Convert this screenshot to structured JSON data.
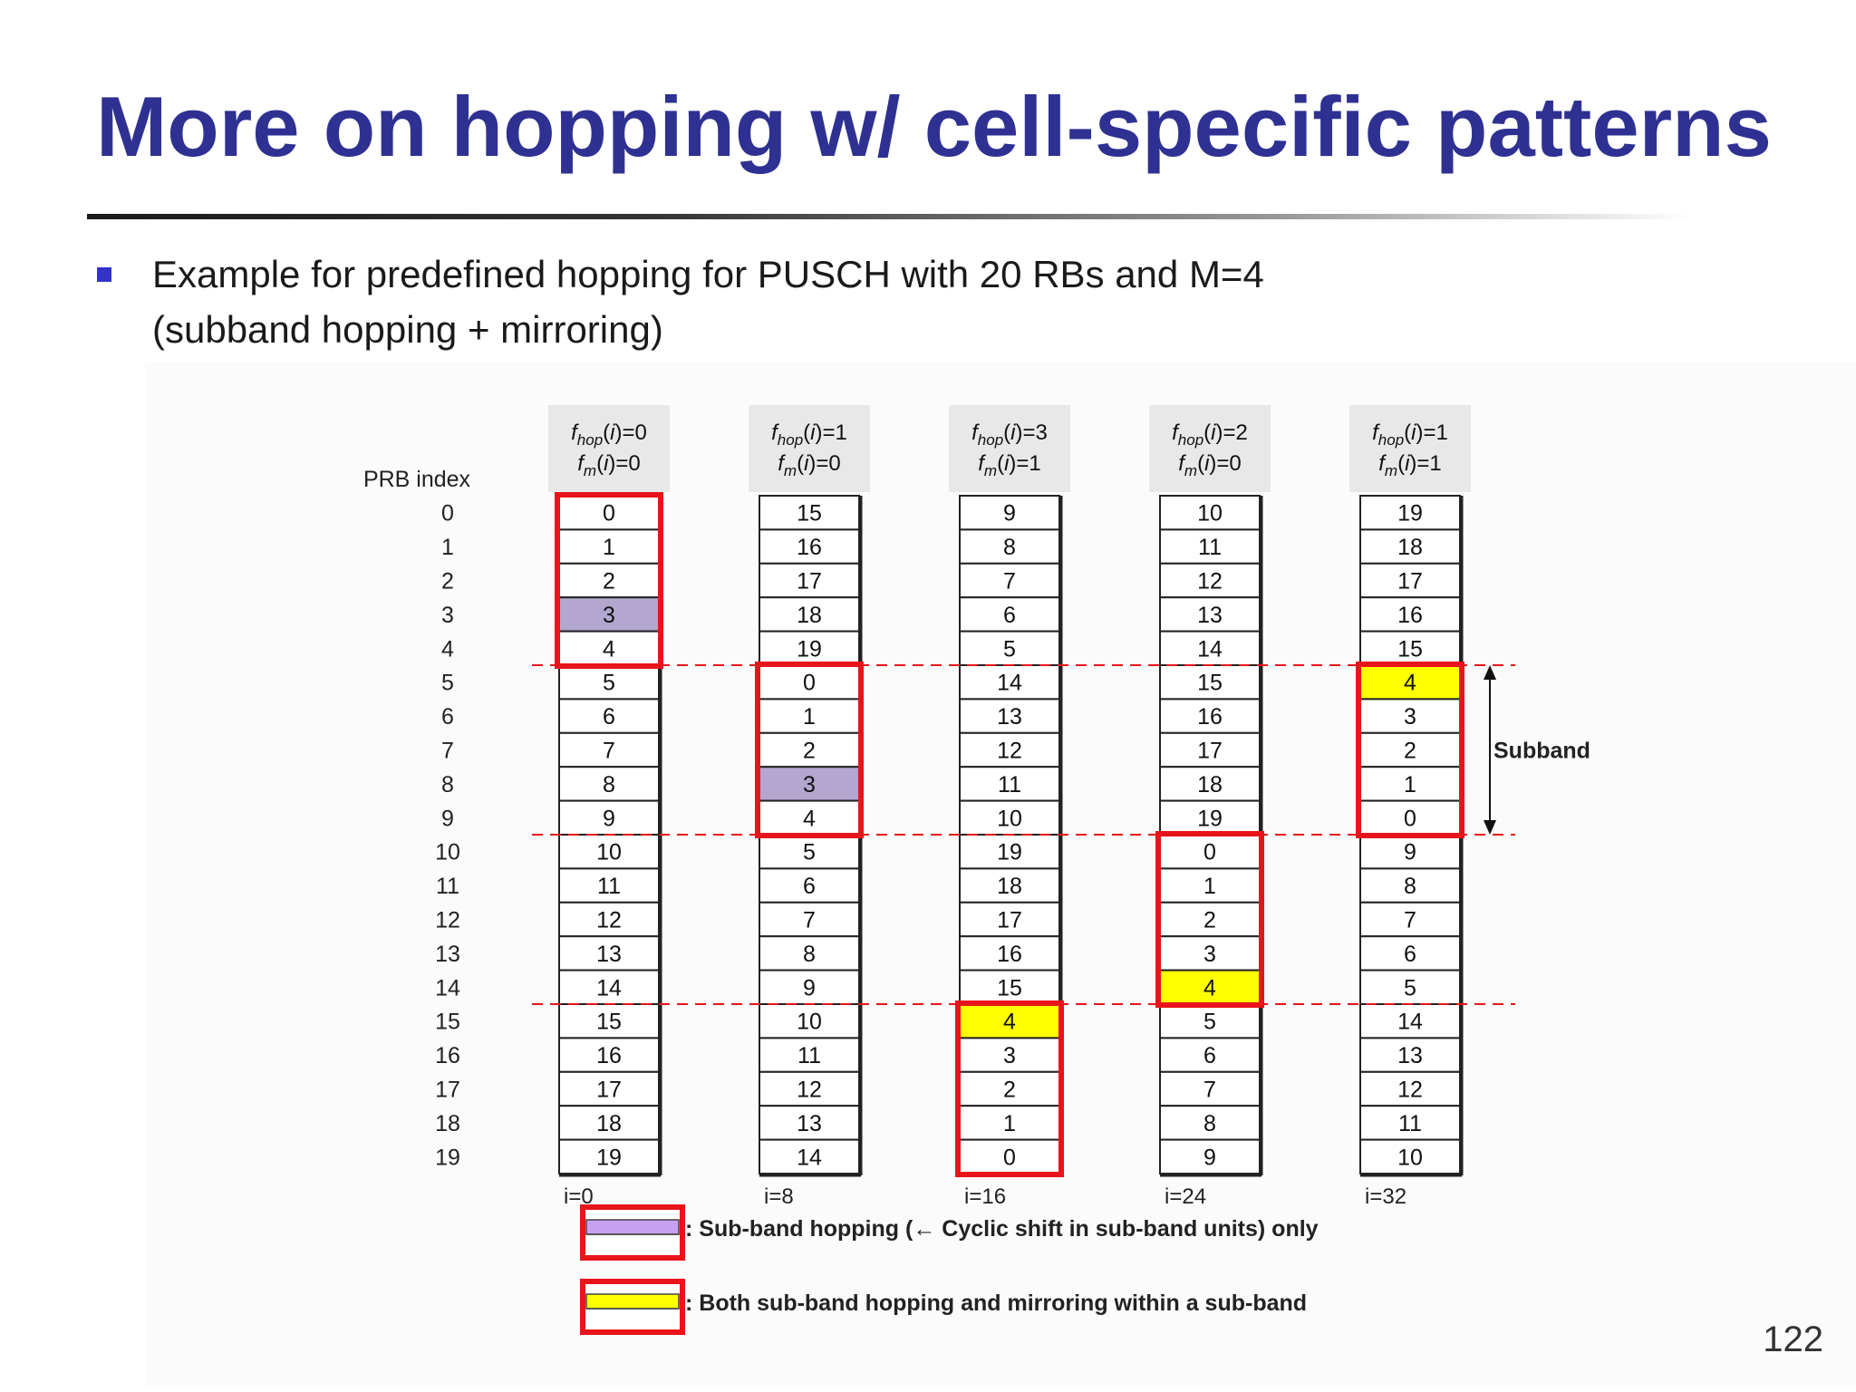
{
  "slide": {
    "title": "More on hopping w/ cell-specific patterns",
    "bullet_line1": "Example for predefined hopping for PUSCH with 20 RBs and M=4",
    "bullet_line2": "(subband hopping + mirroring)",
    "page_number": "122"
  },
  "figure": {
    "prb_label": "PRB index",
    "prb_indices": [
      0,
      1,
      2,
      3,
      4,
      5,
      6,
      7,
      8,
      9,
      10,
      11,
      12,
      13,
      14,
      15,
      16,
      17,
      18,
      19
    ],
    "subband_label": "Subband",
    "columns": [
      {
        "fhop": "0",
        "fm": "0",
        "i_label": "i=0",
        "values": [
          0,
          1,
          2,
          3,
          4,
          5,
          6,
          7,
          8,
          9,
          10,
          11,
          12,
          13,
          14,
          15,
          16,
          17,
          18,
          19
        ],
        "boxed_subband": 0,
        "highlight_row": 3,
        "highlight_type": "purple"
      },
      {
        "fhop": "1",
        "fm": "0",
        "i_label": "i=8",
        "values": [
          15,
          16,
          17,
          18,
          19,
          0,
          1,
          2,
          3,
          4,
          5,
          6,
          7,
          8,
          9,
          10,
          11,
          12,
          13,
          14
        ],
        "boxed_subband": 1,
        "highlight_row": 8,
        "highlight_type": "purple"
      },
      {
        "fhop": "3",
        "fm": "1",
        "i_label": "i=16",
        "values": [
          9,
          8,
          7,
          6,
          5,
          14,
          13,
          12,
          11,
          10,
          19,
          18,
          17,
          16,
          15,
          4,
          3,
          2,
          1,
          0
        ],
        "boxed_subband": 3,
        "highlight_row": 15,
        "highlight_type": "yellow"
      },
      {
        "fhop": "2",
        "fm": "0",
        "i_label": "i=24",
        "values": [
          10,
          11,
          12,
          13,
          14,
          15,
          16,
          17,
          18,
          19,
          0,
          1,
          2,
          3,
          4,
          5,
          6,
          7,
          8,
          9
        ],
        "boxed_subband": 2,
        "highlight_row": 14,
        "highlight_type": "yellow"
      },
      {
        "fhop": "1",
        "fm": "1",
        "i_label": "i=32",
        "values": [
          19,
          18,
          17,
          16,
          15,
          4,
          3,
          2,
          1,
          0,
          9,
          8,
          7,
          6,
          5,
          14,
          13,
          12,
          11,
          10
        ],
        "boxed_subband": 1,
        "highlight_row": 5,
        "highlight_type": "yellow"
      }
    ],
    "legend": [
      {
        "text": ": Sub-band hopping (← Cyclic shift in sub-band units) only",
        "swatch": "purple"
      },
      {
        "text": ": Both sub-band hopping and mirroring within a sub-band",
        "swatch": "yellow"
      }
    ],
    "colors": {
      "purple_cell": "#b3a6cf",
      "purple_swatch": "#c9a0f0",
      "yellow": "#ffff00",
      "box_red": "#e8141b",
      "dash_red": "#e8141b",
      "title_blue": "#2e3192"
    }
  }
}
